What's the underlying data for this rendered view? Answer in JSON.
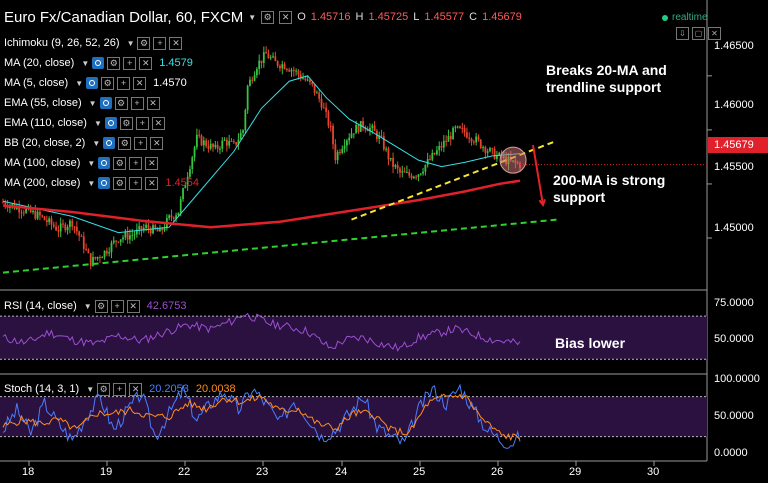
{
  "header": {
    "symbol": "Euro Fx/Canadian Dollar, 60, FXCM",
    "o_label": "O",
    "o_val": "1.45716",
    "h_label": "H",
    "h_val": "1.45725",
    "l_label": "L",
    "l_val": "1.45577",
    "c_label": "C",
    "c_val": "1.45679",
    "realtime": "realtime"
  },
  "indicators": [
    {
      "label": "Ichimoku (9, 26, 52, 26)",
      "value": "",
      "color": "#ffffff"
    },
    {
      "label": "MA (20, close)",
      "value": "1.4579",
      "color": "#35e0e8"
    },
    {
      "label": "MA (5, close)",
      "value": "1.4570",
      "color": "#ffffff"
    },
    {
      "label": "EMA (55, close)",
      "value": "",
      "color": "#ffffff"
    },
    {
      "label": "EMA (110, close)",
      "value": "",
      "color": "#ffffff"
    },
    {
      "label": "BB (20, close, 2)",
      "value": "",
      "color": "#ffffff"
    },
    {
      "label": "MA (100, close)",
      "value": "",
      "color": "#ffffff"
    },
    {
      "label": "MA (200, close)",
      "value": "1.4554",
      "color": "#e0202a"
    }
  ],
  "rsi": {
    "label": "RSI (14, close)",
    "value": "42.6753"
  },
  "stoch": {
    "label": "Stoch (14, 3, 1)",
    "k_val": "20.2053",
    "d_val": "20.0038"
  },
  "annotations": {
    "a1": "Breaks 20-MA and\ntrendline support",
    "a2": "200-MA is strong\nsupport",
    "a3": "Bias lower"
  },
  "price_tag": "1.45679",
  "colors": {
    "bg": "#000000",
    "candle_up": "#37c441",
    "candle_down": "#e8442c",
    "ma20": "#35e0e8",
    "ma200": "#e0202a",
    "trend_yellow": "#f5e632",
    "trend_green": "#2ed22e",
    "rsi_line": "#9b4fd1",
    "stoch_k": "#4a7dff",
    "stoch_d": "#ff8c1a",
    "panel_fill": "#2a1140"
  },
  "chart_data": [
    {
      "type": "candlestick",
      "x_ticks": [
        "18",
        "19",
        "22",
        "23",
        "24",
        "25",
        "26",
        "29",
        "30"
      ],
      "y_ticks": [
        "1.46500",
        "1.46000",
        "1.45500",
        "1.45000"
      ],
      "ylim": [
        1.4463,
        1.4685
      ],
      "close_path": [
        [
          0,
          1.4533
        ],
        [
          8,
          1.4527
        ],
        [
          16,
          1.452
        ],
        [
          24,
          1.4508
        ],
        [
          30,
          1.4515
        ],
        [
          34,
          1.4498
        ],
        [
          38,
          1.4478
        ],
        [
          44,
          1.4487
        ],
        [
          50,
          1.45
        ],
        [
          56,
          1.4503
        ],
        [
          62,
          1.451
        ],
        [
          68,
          1.4505
        ],
        [
          72,
          1.4518
        ],
        [
          76,
          1.4525
        ],
        [
          80,
          1.456
        ],
        [
          84,
          1.4592
        ],
        [
          88,
          1.4587
        ],
        [
          92,
          1.4582
        ],
        [
          96,
          1.459
        ],
        [
          100,
          1.4585
        ],
        [
          104,
          1.46
        ],
        [
          106,
          1.464
        ],
        [
          110,
          1.466
        ],
        [
          114,
          1.467
        ],
        [
          118,
          1.4662
        ],
        [
          122,
          1.466
        ],
        [
          126,
          1.4655
        ],
        [
          130,
          1.4648
        ],
        [
          134,
          1.464
        ],
        [
          138,
          1.4625
        ],
        [
          142,
          1.46
        ],
        [
          144,
          1.4575
        ],
        [
          148,
          1.459
        ],
        [
          152,
          1.46
        ],
        [
          156,
          1.4605
        ],
        [
          160,
          1.46
        ],
        [
          164,
          1.459
        ],
        [
          168,
          1.457
        ],
        [
          172,
          1.456
        ],
        [
          176,
          1.4558
        ],
        [
          180,
          1.456
        ],
        [
          184,
          1.457
        ],
        [
          188,
          1.458
        ],
        [
          192,
          1.459
        ],
        [
          196,
          1.46
        ],
        [
          200,
          1.4598
        ],
        [
          204,
          1.4592
        ],
        [
          208,
          1.4585
        ],
        [
          212,
          1.4578
        ],
        [
          216,
          1.4574
        ],
        [
          220,
          1.457
        ],
        [
          224,
          1.4568
        ]
      ],
      "ma20_path": [
        [
          0,
          1.4534
        ],
        [
          30,
          1.452
        ],
        [
          50,
          1.4505
        ],
        [
          72,
          1.451
        ],
        [
          84,
          1.454
        ],
        [
          100,
          1.458
        ],
        [
          112,
          1.462
        ],
        [
          124,
          1.4645
        ],
        [
          132,
          1.465
        ],
        [
          140,
          1.463
        ],
        [
          150,
          1.461
        ],
        [
          160,
          1.4598
        ],
        [
          170,
          1.4585
        ],
        [
          180,
          1.4572
        ],
        [
          190,
          1.4566
        ],
        [
          200,
          1.457
        ],
        [
          212,
          1.4576
        ],
        [
          224,
          1.4578
        ]
      ],
      "ma200_path": [
        [
          0,
          1.453
        ],
        [
          30,
          1.4524
        ],
        [
          60,
          1.4516
        ],
        [
          90,
          1.451
        ],
        [
          120,
          1.4515
        ],
        [
          150,
          1.4525
        ],
        [
          180,
          1.4535
        ],
        [
          200,
          1.4543
        ],
        [
          215,
          1.455
        ],
        [
          224,
          1.4553
        ]
      ],
      "trend_yellow": [
        [
          151,
          1.4517
        ],
        [
          240,
          1.459
        ]
      ],
      "trend_green": [
        [
          0,
          1.4468
        ],
        [
          240,
          1.4517
        ]
      ],
      "n_bars": 225
    },
    {
      "type": "line",
      "name": "RSI (14, close)",
      "y_ticks": [
        "75.0000",
        "50.0000"
      ],
      "ylim": [
        20,
        85
      ],
      "guides": [
        70,
        30
      ],
      "values_path": [
        [
          0,
          50
        ],
        [
          10,
          45
        ],
        [
          20,
          55
        ],
        [
          30,
          48
        ],
        [
          40,
          44
        ],
        [
          50,
          52
        ],
        [
          60,
          47
        ],
        [
          70,
          55
        ],
        [
          80,
          62
        ],
        [
          90,
          58
        ],
        [
          100,
          66
        ],
        [
          104,
          72
        ],
        [
          110,
          68
        ],
        [
          116,
          63
        ],
        [
          124,
          60
        ],
        [
          132,
          56
        ],
        [
          138,
          46
        ],
        [
          142,
          40
        ],
        [
          148,
          48
        ],
        [
          156,
          50
        ],
        [
          164,
          44
        ],
        [
          172,
          40
        ],
        [
          180,
          50
        ],
        [
          188,
          54
        ],
        [
          196,
          58
        ],
        [
          204,
          53
        ],
        [
          212,
          48
        ],
        [
          220,
          46
        ],
        [
          224,
          44
        ]
      ]
    },
    {
      "type": "line",
      "name": "Stoch (14, 3, 1)",
      "y_ticks": [
        "100.0000",
        "50.0000",
        "0.0000"
      ],
      "ylim": [
        -3,
        105
      ],
      "guides": [
        80,
        20
      ],
      "k_path": [
        [
          0,
          30
        ],
        [
          6,
          60
        ],
        [
          12,
          25
        ],
        [
          18,
          70
        ],
        [
          24,
          40
        ],
        [
          30,
          15
        ],
        [
          36,
          50
        ],
        [
          42,
          80
        ],
        [
          48,
          30
        ],
        [
          54,
          60
        ],
        [
          60,
          85
        ],
        [
          66,
          20
        ],
        [
          72,
          55
        ],
        [
          78,
          90
        ],
        [
          84,
          45
        ],
        [
          90,
          70
        ],
        [
          96,
          88
        ],
        [
          102,
          60
        ],
        [
          108,
          92
        ],
        [
          114,
          70
        ],
        [
          120,
          40
        ],
        [
          126,
          75
        ],
        [
          132,
          50
        ],
        [
          138,
          20
        ],
        [
          144,
          30
        ],
        [
          150,
          55
        ],
        [
          156,
          80
        ],
        [
          162,
          35
        ],
        [
          168,
          20
        ],
        [
          174,
          10
        ],
        [
          180,
          60
        ],
        [
          186,
          92
        ],
        [
          192,
          70
        ],
        [
          198,
          95
        ],
        [
          204,
          60
        ],
        [
          210,
          30
        ],
        [
          216,
          15
        ],
        [
          220,
          10
        ],
        [
          224,
          20
        ]
      ],
      "d_path": [
        [
          0,
          35
        ],
        [
          8,
          45
        ],
        [
          16,
          40
        ],
        [
          24,
          45
        ],
        [
          32,
          30
        ],
        [
          40,
          55
        ],
        [
          48,
          55
        ],
        [
          56,
          60
        ],
        [
          64,
          50
        ],
        [
          72,
          50
        ],
        [
          80,
          70
        ],
        [
          88,
          62
        ],
        [
          96,
          78
        ],
        [
          104,
          72
        ],
        [
          112,
          80
        ],
        [
          120,
          58
        ],
        [
          128,
          62
        ],
        [
          136,
          40
        ],
        [
          144,
          32
        ],
        [
          152,
          55
        ],
        [
          160,
          55
        ],
        [
          168,
          30
        ],
        [
          176,
          25
        ],
        [
          184,
          70
        ],
        [
          192,
          80
        ],
        [
          200,
          82
        ],
        [
          208,
          45
        ],
        [
          216,
          22
        ],
        [
          224,
          18
        ]
      ]
    }
  ]
}
